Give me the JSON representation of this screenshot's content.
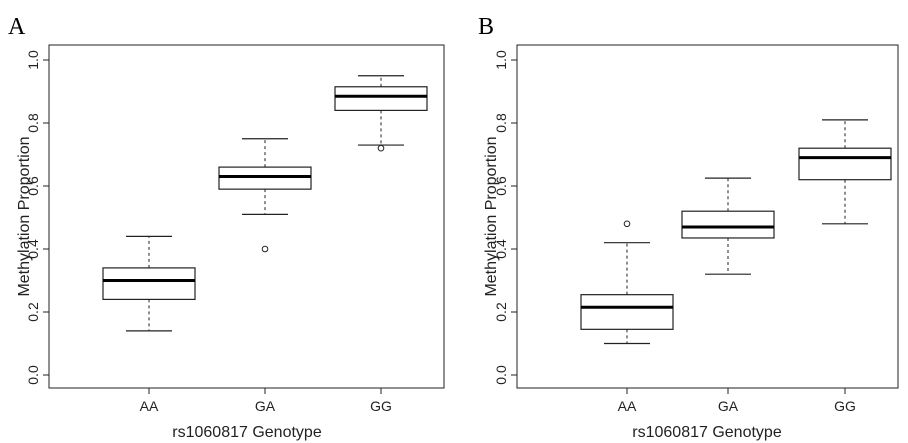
{
  "chart_data": [
    {
      "type": "box",
      "panel": "A",
      "title": "",
      "xlabel": "rs1060817 Genotype",
      "ylabel": "Methylation Proportion",
      "ylim": [
        0.0,
        1.0
      ],
      "yticks": [
        "0.0",
        "0.2",
        "0.4",
        "0.6",
        "0.8",
        "1.0"
      ],
      "categories": [
        "AA",
        "GA",
        "GG"
      ],
      "boxes": [
        {
          "category": "AA",
          "whisker_low": 0.14,
          "q1": 0.24,
          "median": 0.3,
          "q3": 0.34,
          "whisker_high": 0.44,
          "outliers": []
        },
        {
          "category": "GA",
          "whisker_low": 0.51,
          "q1": 0.59,
          "median": 0.63,
          "q3": 0.66,
          "whisker_high": 0.75,
          "outliers": [
            0.4
          ]
        },
        {
          "category": "GG",
          "whisker_low": 0.73,
          "q1": 0.84,
          "median": 0.885,
          "q3": 0.915,
          "whisker_high": 0.95,
          "outliers": [
            0.72
          ]
        }
      ]
    },
    {
      "type": "box",
      "panel": "B",
      "title": "",
      "xlabel": "rs1060817 Genotype",
      "ylabel": "Methylation Proportion",
      "ylim": [
        0.0,
        1.0
      ],
      "yticks": [
        "0.0",
        "0.2",
        "0.4",
        "0.6",
        "0.8",
        "1.0"
      ],
      "categories": [
        "AA",
        "GA",
        "GG"
      ],
      "boxes": [
        {
          "category": "AA",
          "whisker_low": 0.1,
          "q1": 0.145,
          "median": 0.215,
          "q3": 0.255,
          "whisker_high": 0.42,
          "outliers": [
            0.48
          ]
        },
        {
          "category": "GA",
          "whisker_low": 0.32,
          "q1": 0.435,
          "median": 0.47,
          "q3": 0.52,
          "whisker_high": 0.625,
          "outliers": []
        },
        {
          "category": "GG",
          "whisker_low": 0.48,
          "q1": 0.62,
          "median": 0.69,
          "q3": 0.72,
          "whisker_high": 0.81,
          "outliers": []
        }
      ]
    }
  ],
  "colors": {
    "axis": "#222222",
    "box_stroke": "#222222",
    "median": "#000000",
    "background": "#ffffff"
  }
}
